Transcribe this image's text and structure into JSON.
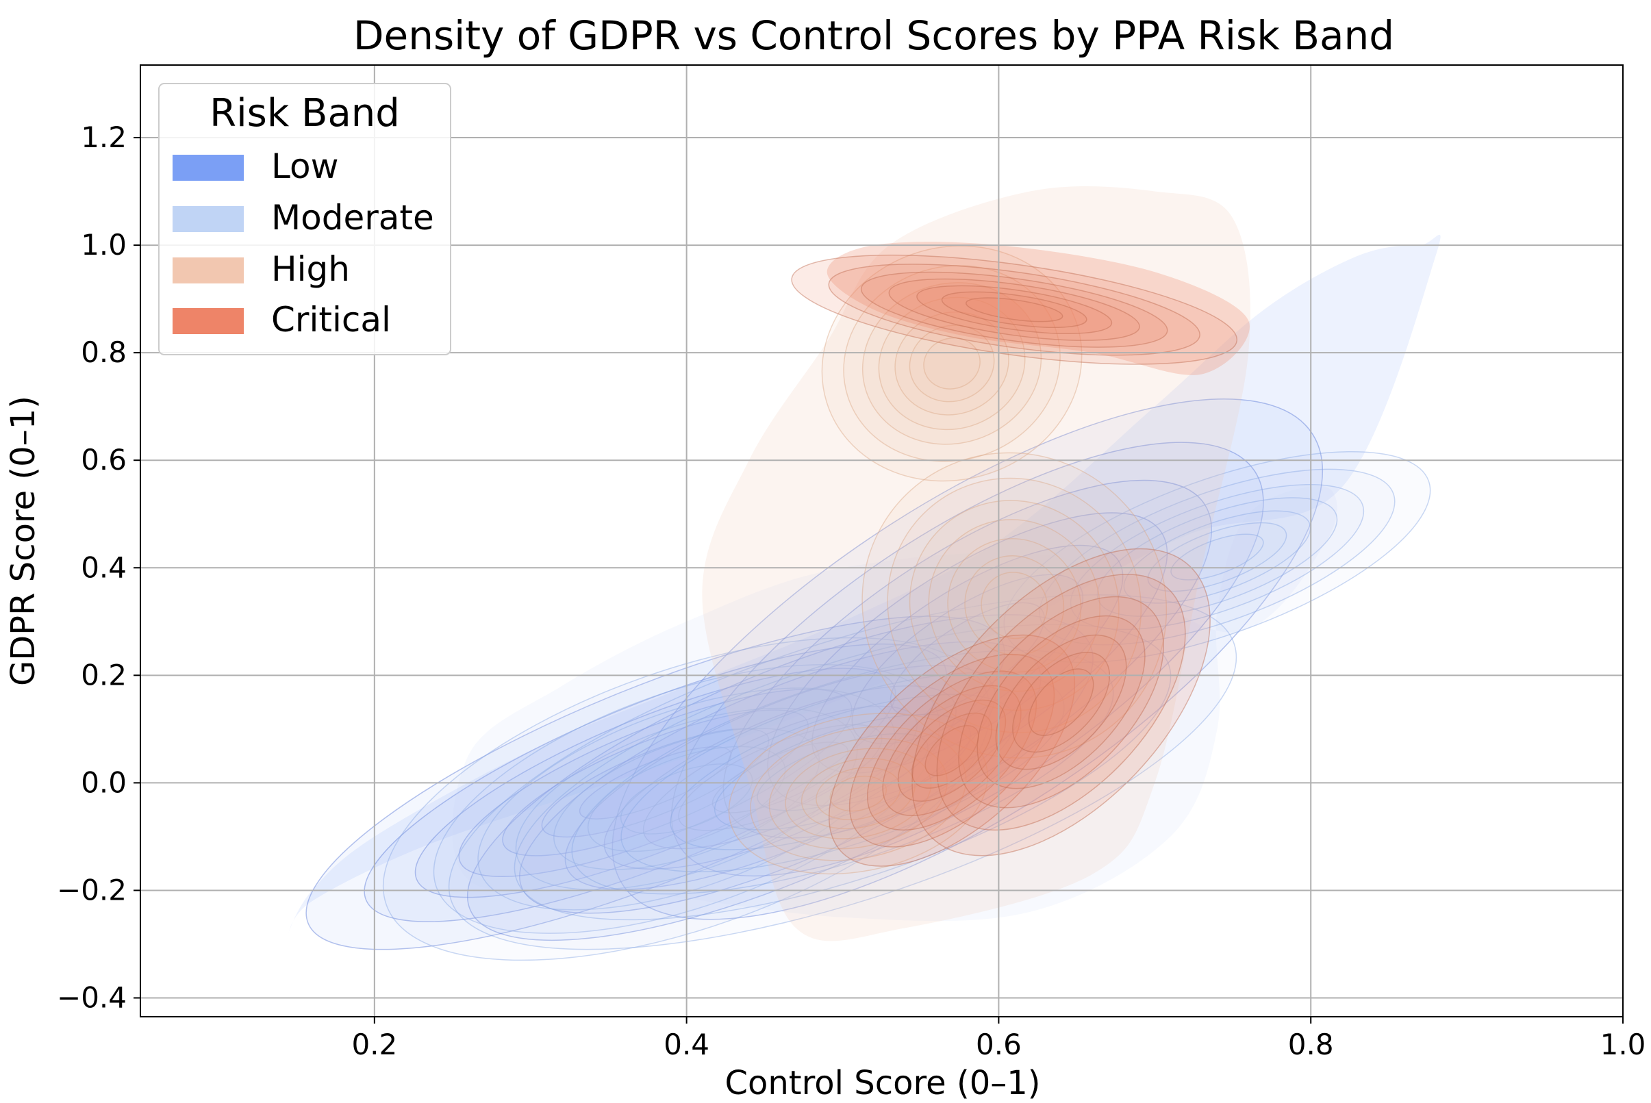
{
  "chart_data": {
    "type": "kde_density",
    "title": "Density of GDPR vs Control Scores by PPA Risk Band",
    "xlabel": "Control Score (0–1)",
    "ylabel": "GDPR Score (0–1)",
    "xlim": [
      0.05,
      1.0
    ],
    "ylim": [
      -0.435,
      1.335
    ],
    "xticks": [
      0.2,
      0.4,
      0.6,
      0.8,
      1.0
    ],
    "xtick_labels": [
      "0.2",
      "0.4",
      "0.6",
      "0.8",
      "1.0"
    ],
    "yticks": [
      -0.4,
      -0.2,
      0.0,
      0.2,
      0.4,
      0.6,
      0.8,
      1.0,
      1.2
    ],
    "ytick_labels": [
      "−0.4",
      "−0.2",
      "0.0",
      "0.2",
      "0.4",
      "0.6",
      "0.8",
      "1.0",
      "1.2"
    ],
    "grid": true,
    "legend": {
      "title": "Risk Band",
      "position": "top-left",
      "entries": [
        {
          "label": "Low",
          "color": "#7b9ff5"
        },
        {
          "label": "Moderate",
          "color": "#c0d4f5"
        },
        {
          "label": "High",
          "color": "#f2c7b0"
        },
        {
          "label": "Critical",
          "color": "#ee8468"
        }
      ]
    },
    "series": [
      {
        "name": "Low",
        "color": "#7b9ff5",
        "fill_alpha": 0.15,
        "line_color": "#5877d6",
        "peaks": [
          {
            "x": 0.38,
            "y": 0.0,
            "sx": 0.1,
            "sy": 0.075,
            "rho": 0.45
          },
          {
            "x": 0.46,
            "y": 0.01,
            "sx": 0.09,
            "sy": 0.08,
            "rho": 0.4
          },
          {
            "x": 0.58,
            "y": 0.23,
            "sx": 0.11,
            "sy": 0.12,
            "rho": 0.5
          }
        ],
        "outer_shape": [
          [
            0.145,
            -0.28
          ],
          [
            0.16,
            -0.22
          ],
          [
            0.23,
            -0.12
          ],
          [
            0.33,
            -0.02
          ],
          [
            0.45,
            0.1
          ],
          [
            0.6,
            0.28
          ],
          [
            0.72,
            0.46
          ],
          [
            0.82,
            0.55
          ],
          [
            0.88,
            0.98
          ],
          [
            0.87,
            1.0
          ],
          [
            0.83,
            0.98
          ],
          [
            0.77,
            0.88
          ],
          [
            0.7,
            0.7
          ],
          [
            0.6,
            0.45
          ],
          [
            0.5,
            0.3
          ],
          [
            0.4,
            0.18
          ],
          [
            0.3,
            0.06
          ],
          [
            0.2,
            -0.1
          ],
          [
            0.16,
            -0.2
          ]
        ]
      },
      {
        "name": "Moderate",
        "color": "#c0d4f5",
        "fill_alpha": 0.15,
        "line_color": "#8aa8e4",
        "peaks": [
          {
            "x": 0.4,
            "y": -0.03,
            "sx": 0.085,
            "sy": 0.1,
            "rho": 0.25
          },
          {
            "x": 0.5,
            "y": 0.02,
            "sx": 0.11,
            "sy": 0.1,
            "rho": 0.3
          },
          {
            "x": 0.74,
            "y": 0.42,
            "sx": 0.06,
            "sy": 0.06,
            "rho": 0.3
          }
        ],
        "outer_shape": [
          [
            0.26,
            -0.18
          ],
          [
            0.36,
            -0.2
          ],
          [
            0.5,
            -0.25
          ],
          [
            0.62,
            -0.24
          ],
          [
            0.71,
            -0.1
          ],
          [
            0.74,
            0.1
          ],
          [
            0.74,
            0.32
          ],
          [
            0.76,
            0.5
          ],
          [
            0.81,
            0.55
          ],
          [
            0.81,
            0.45
          ],
          [
            0.75,
            0.28
          ],
          [
            0.64,
            0.42
          ],
          [
            0.5,
            0.4
          ],
          [
            0.4,
            0.3
          ],
          [
            0.32,
            0.18
          ],
          [
            0.26,
            0.05
          ]
        ]
      },
      {
        "name": "High",
        "color": "#f2c7b0",
        "fill_alpha": 0.22,
        "line_color": "#dba888",
        "peaks": [
          {
            "x": 0.51,
            "y": -0.02,
            "sx": 0.035,
            "sy": 0.06,
            "rho": 0.1
          },
          {
            "x": 0.57,
            "y": 0.78,
            "sx": 0.035,
            "sy": 0.09,
            "rho": 0.1
          },
          {
            "x": 0.61,
            "y": 0.33,
            "sx": 0.04,
            "sy": 0.12,
            "rho": 0.25
          }
        ],
        "outer_shape": [
          [
            0.47,
            -0.27
          ],
          [
            0.54,
            -0.27
          ],
          [
            0.66,
            -0.17
          ],
          [
            0.7,
            0.0
          ],
          [
            0.73,
            0.4
          ],
          [
            0.76,
            0.8
          ],
          [
            0.75,
            1.05
          ],
          [
            0.7,
            1.1
          ],
          [
            0.62,
            1.1
          ],
          [
            0.53,
            1.0
          ],
          [
            0.49,
            0.82
          ],
          [
            0.44,
            0.6
          ],
          [
            0.41,
            0.35
          ],
          [
            0.44,
            0.0
          ]
        ]
      },
      {
        "name": "Critical",
        "color": "#ee8468",
        "fill_alpha": 0.3,
        "line_color": "#bf6a50",
        "peaks": [
          {
            "x": 0.61,
            "y": 0.88,
            "sx": 0.06,
            "sy": 0.035,
            "rho": -0.2
          },
          {
            "x": 0.57,
            "y": 0.06,
            "sx": 0.04,
            "sy": 0.06,
            "rho": 0.5
          },
          {
            "x": 0.64,
            "y": 0.15,
            "sx": 0.05,
            "sy": 0.08,
            "rho": 0.55
          }
        ],
        "outer_shape": [
          [
            0.49,
            0.95
          ],
          [
            0.52,
            1.0
          ],
          [
            0.6,
            1.0
          ],
          [
            0.7,
            0.95
          ],
          [
            0.76,
            0.86
          ],
          [
            0.73,
            0.76
          ],
          [
            0.66,
            0.8
          ],
          [
            0.58,
            0.83
          ],
          [
            0.52,
            0.88
          ]
        ]
      }
    ]
  }
}
